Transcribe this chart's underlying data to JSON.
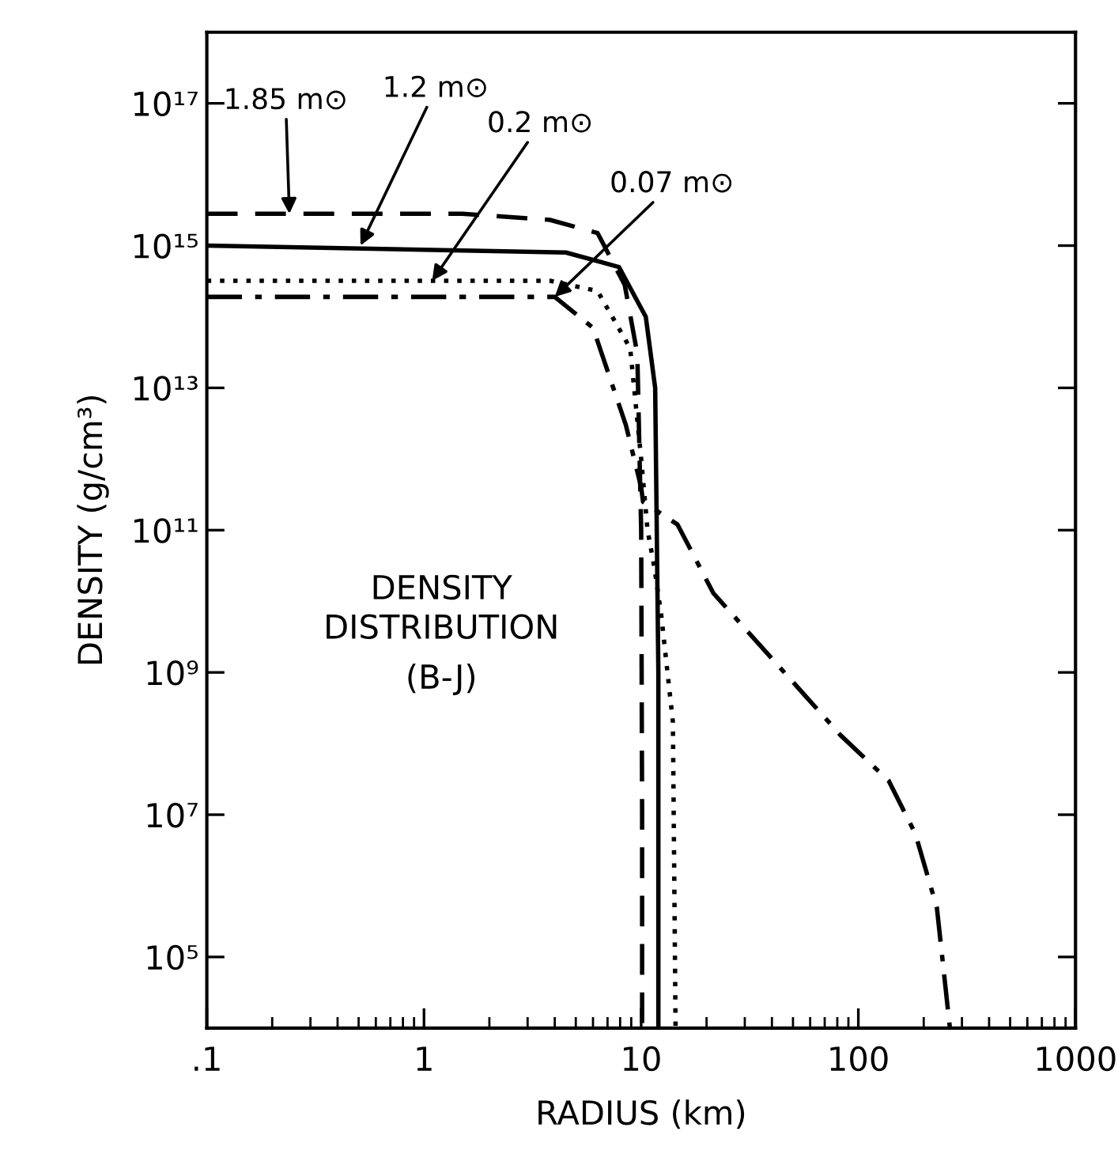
{
  "chart_data": {
    "type": "line",
    "xlabel": "RADIUS (km)",
    "ylabel": "DENSITY (g/cm³)",
    "log": "xy",
    "grid": false,
    "legend": false,
    "marker": "none",
    "xlim": [
      0.1,
      1000
    ],
    "ylim": [
      10000,
      1e+18
    ],
    "xticks": [
      {
        "value": 0.1,
        "label": ".1"
      },
      1,
      10,
      100,
      1000
    ],
    "yticks": [
      {
        "value": 100000.0,
        "label": "10⁵"
      },
      {
        "value": 10000000.0,
        "label": "10⁷"
      },
      {
        "value": 1000000000.0,
        "label": "10⁹"
      },
      {
        "value": 100000000000.0,
        "label": "10¹¹"
      },
      {
        "value": 10000000000000.0,
        "label": "10¹³"
      },
      {
        "value": 1000000000000000.0,
        "label": "10¹⁵"
      },
      {
        "value": 1e+17,
        "label": "10¹⁷"
      }
    ],
    "series": [
      {
        "color": "#000000",
        "line_style": "dashed",
        "x": [
          0.1,
          1.5,
          3.8,
          6.3,
          8.4,
          9.6,
          10.0,
          10.1,
          10.1
        ],
        "values": [
          2800000000000000.0,
          2800000000000000.0,
          2300000000000000.0,
          1500000000000000.0,
          280000000000000.0,
          30000000000000.0,
          100000000000.0,
          10000000.0,
          10000.0
        ]
      },
      {
        "color": "#000000",
        "line_style": "solid",
        "x": [
          0.1,
          4.5,
          7.9,
          10.5,
          11.6,
          12,
          12
        ],
        "values": [
          1000000000000000.0,
          800000000000000.0,
          500000000000000.0,
          100000000000000.0,
          10000000000000.0,
          1000000000.0,
          10000.0
        ]
      },
      {
        "color": "#000000",
        "line_style": "dotted",
        "x": [
          0.1,
          3.8,
          6.3,
          8.9,
          10,
          10.7,
          11.5,
          12.4,
          14.0,
          14.4
        ],
        "values": [
          320000000000000.0,
          320000000000000.0,
          230000000000000.0,
          36000000000000.0,
          1000000000000.0,
          100000000000.0,
          30000000000.0,
          6000000000.0,
          200000000.0,
          10000.0
        ]
      },
      {
        "color": "#000000",
        "line_style": "dashdot",
        "x": [
          0.1,
          4.0,
          6.0,
          8.5,
          10,
          10.2,
          14.7,
          21.5,
          83,
          138,
          183,
          230,
          264
        ],
        "values": [
          190000000000000.0,
          190000000000000.0,
          70000000000000.0,
          3000000000000.0,
          400000000000.0,
          250000000000.0,
          120000000000.0,
          13000000000.0,
          130000000.0,
          30000000.0,
          5400000.0,
          490000.0,
          10000.0
        ]
      }
    ],
    "annotations": [
      {
        "text": "1.85 m⊙",
        "x": 0.24,
        "y": 2800000000000000.0
      },
      {
        "text": "1.2 m⊙",
        "x": 0.51,
        "y": 1000000000000000.0
      },
      {
        "text": "0.2 m⊙",
        "x": 1.09,
        "y": 320000000000000.0
      },
      {
        "text": "0.07 m⊙",
        "x": 4.0,
        "y": 190000000000000.0
      },
      "DENSITY\nDISTRIBUTION",
      "(B-J)"
    ]
  }
}
